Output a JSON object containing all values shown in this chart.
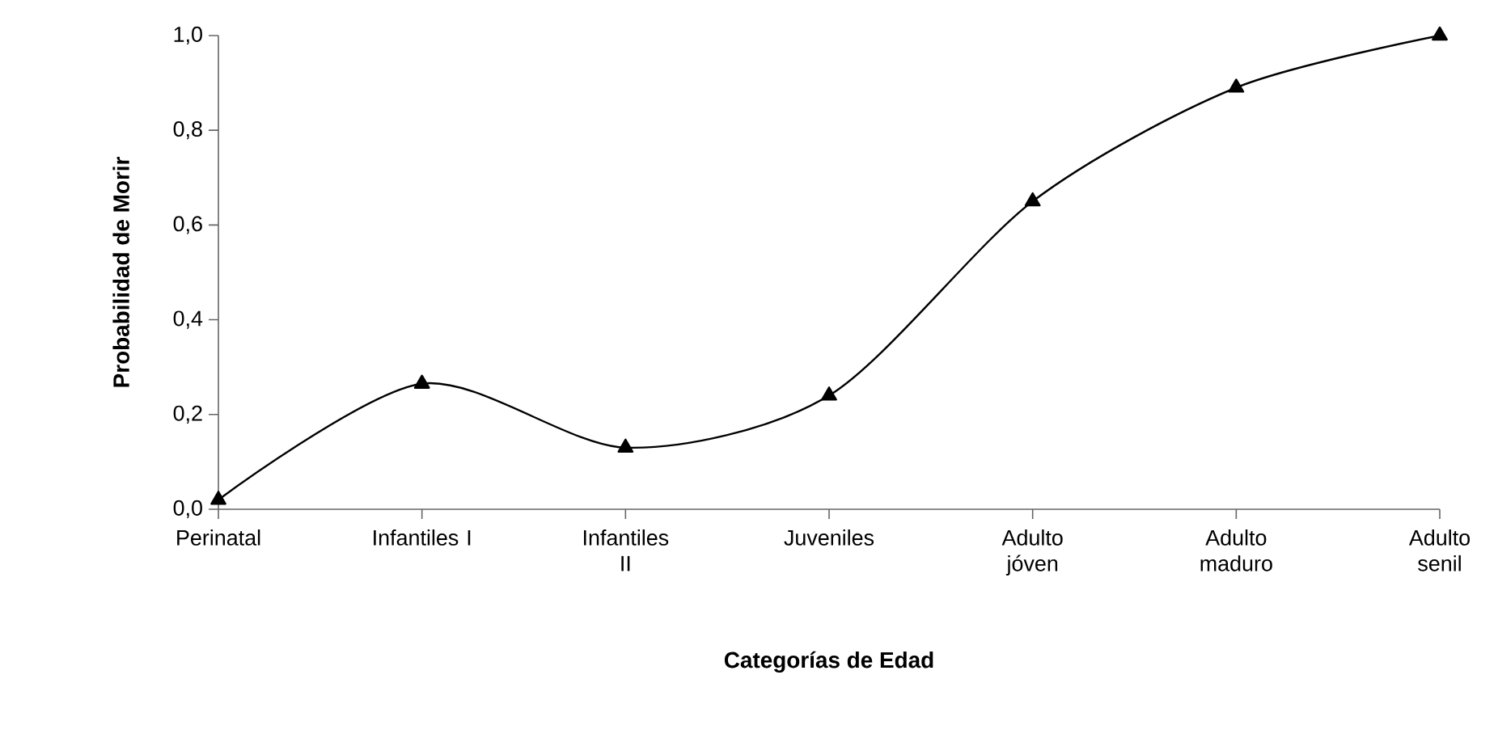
{
  "chart_data": {
    "type": "line",
    "xlabel": "Categorías de Edad",
    "ylabel": "Probabilidad de Morir",
    "categories": [
      "Perinatal",
      "Infantiles I",
      "Infantiles II",
      "Juveniles",
      "Adulto jóven",
      "Adulto maduro",
      "Adulto senil"
    ],
    "values": [
      0.02,
      0.265,
      0.13,
      0.24,
      0.65,
      0.89,
      1.0
    ],
    "color": "#000000",
    "ylim": [
      0,
      1.0
    ],
    "yticks": [
      {
        "value": 0,
        "label": "0,0"
      },
      {
        "value": 0.2,
        "label": "0,2"
      },
      {
        "value": 0.4,
        "label": "0,4"
      },
      {
        "value": 0.6,
        "label": "0,6"
      },
      {
        "value": 0.8,
        "label": "0,8"
      },
      {
        "value": 1.0,
        "label": "1,0"
      }
    ],
    "marker": "triangle",
    "line_style": "solid"
  }
}
